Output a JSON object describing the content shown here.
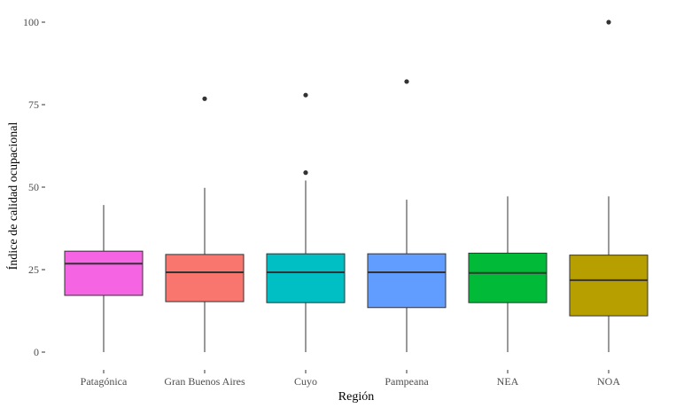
{
  "chart_data": {
    "type": "boxplot",
    "title": "",
    "xlabel": "Región",
    "ylabel": "Índice de calidad ocupacional",
    "ylim": [
      -5,
      105
    ],
    "yticks": [
      0,
      25,
      50,
      75,
      100
    ],
    "ytick_labels": [
      "0",
      "25",
      "50",
      "75",
      "100"
    ],
    "categories": [
      "Patagónica",
      "Gran Buenos Aires",
      "Cuyo",
      "Pampeana",
      "NEA",
      "NOA"
    ],
    "series": [
      {
        "name": "Patagónica",
        "whisker_low": 0,
        "q1": 17.2,
        "median": 26.8,
        "q3": 30.6,
        "whisker_high": 44.6,
        "outliers": [],
        "color": "#f564e3"
      },
      {
        "name": "Gran Buenos Aires",
        "whisker_low": 0,
        "q1": 15.3,
        "median": 24.2,
        "q3": 29.6,
        "whisker_high": 49.8,
        "outliers": [
          76.8
        ],
        "color": "#f8766d"
      },
      {
        "name": "Cuyo",
        "whisker_low": 0,
        "q1": 15.0,
        "median": 24.2,
        "q3": 29.8,
        "whisker_high": 52.0,
        "outliers": [
          54.4,
          77.9
        ],
        "color": "#00bfc4"
      },
      {
        "name": "Pampeana",
        "whisker_low": 0,
        "q1": 13.5,
        "median": 24.2,
        "q3": 29.8,
        "whisker_high": 46.2,
        "outliers": [
          82.0
        ],
        "color": "#619cff"
      },
      {
        "name": "NEA",
        "whisker_low": 0,
        "q1": 15.0,
        "median": 24.0,
        "q3": 30.0,
        "whisker_high": 47.2,
        "outliers": [],
        "color": "#00ba38"
      },
      {
        "name": "NOA",
        "whisker_low": 0,
        "q1": 11.0,
        "median": 21.8,
        "q3": 29.4,
        "whisker_high": 47.2,
        "outliers": [
          100.0
        ],
        "color": "#b79f00"
      }
    ]
  }
}
